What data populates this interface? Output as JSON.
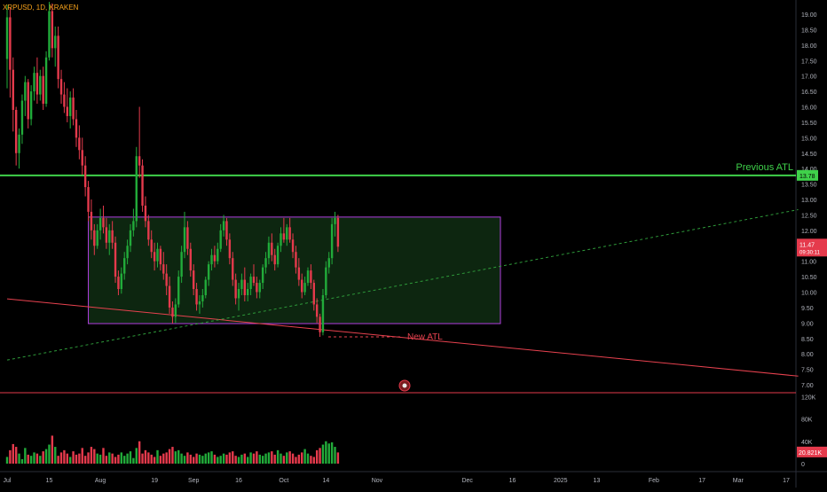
{
  "header": {
    "symbol_label": "XRPUSD, 1D, KRAKEN"
  },
  "colors": {
    "up": "#22ab3a",
    "down": "#e53a4c",
    "range_box_border": "#b13ee0",
    "range_box_fill": "#0e2a12",
    "previous_atl_line": "#3fd14a",
    "support_trend": "#e8424f",
    "dotted_trend": "#2e9a3a",
    "symbol_text": "#f7a21b",
    "axis_text": "#b2b5be"
  },
  "annotations": {
    "previous_atl": "Previous ATL",
    "new_atl": "New ATL"
  },
  "price_tags": {
    "previous_atl_value": "13.78",
    "last_price": "11.47",
    "countdown": "09:30:11",
    "volume_value": "20.821K"
  },
  "chart_data": [
    {
      "type": "candlestick",
      "title": "XRPUSD, 1D, KRAKEN",
      "y_axis": {
        "ticks": [
          "19.00",
          "18.50",
          "18.00",
          "17.50",
          "17.00",
          "16.50",
          "16.00",
          "15.50",
          "15.00",
          "14.50",
          "14.00",
          "13.50",
          "13.00",
          "12.50",
          "12.00",
          "11.50",
          "11.00",
          "10.50",
          "10.00",
          "9.50",
          "9.00",
          "8.50",
          "8.00",
          "7.50",
          "7.00"
        ],
        "range": [
          6.75,
          19.4
        ]
      },
      "x_axis": {
        "ticks": [
          "Jul",
          "15",
          "Aug",
          "19",
          "Sep",
          "16",
          "Oct",
          "14",
          "Nov",
          "Dec",
          "16",
          "2025",
          "13",
          "Feb",
          "17",
          "Mar",
          "17"
        ],
        "tick_days": [
          0,
          14,
          31,
          49,
          62,
          77,
          92,
          106,
          123,
          153,
          168,
          184,
          196,
          215,
          231,
          243,
          259
        ]
      },
      "reference_lines": {
        "previous_atl_price": 13.78,
        "range_box": {
          "from_day": 27,
          "to_day": 164,
          "low": 8.98,
          "high": 12.43
        },
        "support_trend": {
          "start": [
            0,
            9.78
          ],
          "end": [
            263,
            7.28
          ]
        },
        "dotted_trend": {
          "start": [
            0,
            7.8
          ],
          "end": [
            263,
            12.67
          ]
        },
        "new_atl_price": 8.55
      },
      "ohlc": [
        [
          17.55,
          19.3,
          16.6,
          18.9
        ],
        [
          18.9,
          19.2,
          16.3,
          17.2
        ],
        [
          17.2,
          17.6,
          15.2,
          15.9
        ],
        [
          15.9,
          16.0,
          14.1,
          14.5
        ],
        [
          14.5,
          15.3,
          14.0,
          15.1
        ],
        [
          15.1,
          16.4,
          14.8,
          16.2
        ],
        [
          16.2,
          17.0,
          15.7,
          16.8
        ],
        [
          16.8,
          16.9,
          15.3,
          15.6
        ],
        [
          15.6,
          16.7,
          15.4,
          16.5
        ],
        [
          16.5,
          17.3,
          16.2,
          17.1
        ],
        [
          17.1,
          17.6,
          16.1,
          16.4
        ],
        [
          16.4,
          17.2,
          16.2,
          17.0
        ],
        [
          17.0,
          17.3,
          15.9,
          16.1
        ],
        [
          16.1,
          17.8,
          16.0,
          17.6
        ],
        [
          17.6,
          19.4,
          17.5,
          19.1
        ],
        [
          19.1,
          19.35,
          17.6,
          17.9
        ],
        [
          17.9,
          18.6,
          17.3,
          18.3
        ],
        [
          18.3,
          18.6,
          16.6,
          16.9
        ],
        [
          16.9,
          17.2,
          16.1,
          16.4
        ],
        [
          16.4,
          16.8,
          15.8,
          16.0
        ],
        [
          16.0,
          16.6,
          15.5,
          15.7
        ],
        [
          15.7,
          16.5,
          15.3,
          16.3
        ],
        [
          16.3,
          16.6,
          15.4,
          15.6
        ],
        [
          15.6,
          15.9,
          14.7,
          15.0
        ],
        [
          15.0,
          15.4,
          14.3,
          14.6
        ],
        [
          14.6,
          15.0,
          13.8,
          14.1
        ],
        [
          14.1,
          14.4,
          13.1,
          13.4
        ],
        [
          13.4,
          13.6,
          12.3,
          12.6
        ],
        [
          12.6,
          13.0,
          11.7,
          12.0
        ],
        [
          12.0,
          12.2,
          11.2,
          11.5
        ],
        [
          11.5,
          12.2,
          11.4,
          12.0
        ],
        [
          12.0,
          12.7,
          11.7,
          12.4
        ],
        [
          12.4,
          12.8,
          11.9,
          12.1
        ],
        [
          12.1,
          12.4,
          11.4,
          11.6
        ],
        [
          11.6,
          12.2,
          11.2,
          12.0
        ],
        [
          12.0,
          12.3,
          11.4,
          11.6
        ],
        [
          11.6,
          11.8,
          10.3,
          10.5
        ],
        [
          10.5,
          10.7,
          9.9,
          10.1
        ],
        [
          10.1,
          10.8,
          9.95,
          10.6
        ],
        [
          10.6,
          11.3,
          10.4,
          11.1
        ],
        [
          11.1,
          11.7,
          10.9,
          11.5
        ],
        [
          11.5,
          12.2,
          11.3,
          12.0
        ],
        [
          12.0,
          12.7,
          11.8,
          12.3
        ],
        [
          12.3,
          14.7,
          12.1,
          14.4
        ],
        [
          14.4,
          16.0,
          13.7,
          14.1
        ],
        [
          14.1,
          14.3,
          12.6,
          12.8
        ],
        [
          12.8,
          13.1,
          12.1,
          12.3
        ],
        [
          12.3,
          12.5,
          11.5,
          11.7
        ],
        [
          11.7,
          12.0,
          11.1,
          11.3
        ],
        [
          11.3,
          11.6,
          10.7,
          11.0
        ],
        [
          11.0,
          11.6,
          10.8,
          11.4
        ],
        [
          11.4,
          11.5,
          10.7,
          10.9
        ],
        [
          10.9,
          11.3,
          10.4,
          10.6
        ],
        [
          10.6,
          10.9,
          9.9,
          10.2
        ],
        [
          10.2,
          10.5,
          9.3,
          9.5
        ],
        [
          9.5,
          9.7,
          8.98,
          9.2
        ],
        [
          9.2,
          9.8,
          9.0,
          9.6
        ],
        [
          9.6,
          10.7,
          9.5,
          10.5
        ],
        [
          10.5,
          11.5,
          10.3,
          11.3
        ],
        [
          11.3,
          12.6,
          11.1,
          12.1
        ],
        [
          12.1,
          12.3,
          11.2,
          11.4
        ],
        [
          11.4,
          11.6,
          10.5,
          10.7
        ],
        [
          10.7,
          10.9,
          9.9,
          10.1
        ],
        [
          10.1,
          10.3,
          9.4,
          9.6
        ],
        [
          9.6,
          9.9,
          9.3,
          9.7
        ],
        [
          9.7,
          10.1,
          9.5,
          9.9
        ],
        [
          9.9,
          10.5,
          9.8,
          10.4
        ],
        [
          10.4,
          11.0,
          10.2,
          10.9
        ],
        [
          10.9,
          11.4,
          10.7,
          11.2
        ],
        [
          11.2,
          11.5,
          10.8,
          11.0
        ],
        [
          11.0,
          11.6,
          10.9,
          11.4
        ],
        [
          11.4,
          12.2,
          11.3,
          12.0
        ],
        [
          12.0,
          12.5,
          11.8,
          12.3
        ],
        [
          12.3,
          12.4,
          11.5,
          11.7
        ],
        [
          11.7,
          11.9,
          10.9,
          11.1
        ],
        [
          11.1,
          11.3,
          10.2,
          10.4
        ],
        [
          10.4,
          10.6,
          9.6,
          9.8
        ],
        [
          9.8,
          10.3,
          9.4,
          10.1
        ],
        [
          10.1,
          10.6,
          9.9,
          10.4
        ],
        [
          10.4,
          10.8,
          9.7,
          9.9
        ],
        [
          9.9,
          10.3,
          9.7,
          10.1
        ],
        [
          10.1,
          10.6,
          9.9,
          10.5
        ],
        [
          10.5,
          10.9,
          10.2,
          10.3
        ],
        [
          10.3,
          10.5,
          9.8,
          10.0
        ],
        [
          10.0,
          10.4,
          9.8,
          10.3
        ],
        [
          10.3,
          10.9,
          10.1,
          10.8
        ],
        [
          10.8,
          11.3,
          10.6,
          11.1
        ],
        [
          11.1,
          11.8,
          10.9,
          11.6
        ],
        [
          11.6,
          11.9,
          11.0,
          11.2
        ],
        [
          11.2,
          11.4,
          10.7,
          10.9
        ],
        [
          10.9,
          11.6,
          10.8,
          11.5
        ],
        [
          11.5,
          12.1,
          11.3,
          11.9
        ],
        [
          11.9,
          12.4,
          11.6,
          11.7
        ],
        [
          11.7,
          12.2,
          11.5,
          12.1
        ],
        [
          12.1,
          12.4,
          11.6,
          11.7
        ],
        [
          11.7,
          11.9,
          11.1,
          11.3
        ],
        [
          11.3,
          11.5,
          10.6,
          10.8
        ],
        [
          10.8,
          11.1,
          10.2,
          10.4
        ],
        [
          10.4,
          10.6,
          9.8,
          10.0
        ],
        [
          10.0,
          10.5,
          9.9,
          10.3
        ],
        [
          10.3,
          10.8,
          10.2,
          10.7
        ],
        [
          10.7,
          10.9,
          10.1,
          10.3
        ],
        [
          10.3,
          10.4,
          9.4,
          9.6
        ],
        [
          9.6,
          9.8,
          9.0,
          9.2
        ],
        [
          9.2,
          9.3,
          8.55,
          8.7
        ],
        [
          8.7,
          10.1,
          8.6,
          9.9
        ],
        [
          9.9,
          11.0,
          9.8,
          10.8
        ],
        [
          10.8,
          11.3,
          10.6,
          11.1
        ],
        [
          11.1,
          12.4,
          10.9,
          12.2
        ],
        [
          12.2,
          12.6,
          11.8,
          12.4
        ],
        [
          12.4,
          12.5,
          11.3,
          11.47
        ]
      ],
      "volume": {
        "axis_ticks": [
          "120K",
          "80K",
          "40K",
          "0"
        ],
        "range": [
          0,
          122
        ],
        "values": [
          12,
          24,
          35,
          30,
          18,
          8,
          28,
          16,
          14,
          20,
          18,
          14,
          22,
          26,
          34,
          50,
          30,
          14,
          20,
          24,
          18,
          12,
          22,
          16,
          18,
          28,
          14,
          20,
          30,
          26,
          18,
          16,
          28,
          14,
          20,
          18,
          12,
          16,
          20,
          14,
          18,
          22,
          10,
          28,
          40,
          18,
          24,
          20,
          16,
          12,
          24,
          14,
          18,
          20,
          26,
          30,
          22,
          24,
          18,
          14,
          20,
          16,
          12,
          18,
          16,
          14,
          18,
          20,
          22,
          16,
          12,
          14,
          18,
          16,
          20,
          22,
          14,
          12,
          16,
          18,
          12,
          20,
          18,
          22,
          16,
          14,
          18,
          20,
          22,
          16,
          24,
          18,
          14,
          20,
          22,
          18,
          12,
          16,
          20,
          26,
          18,
          14,
          12,
          24,
          28,
          34,
          40,
          36,
          38,
          30,
          20
        ]
      }
    }
  ]
}
